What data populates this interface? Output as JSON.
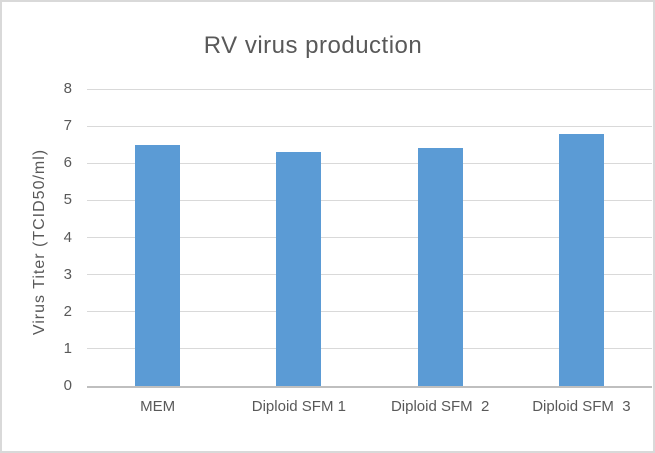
{
  "chart_data": {
    "type": "bar",
    "title": "RV virus production",
    "categories": [
      "MEM",
      "Diploid SFM 1",
      "Diploid SFM  2",
      "Diploid SFM  3"
    ],
    "values": [
      6.5,
      6.3,
      6.4,
      6.8
    ],
    "xlabel": "",
    "ylabel": "Virus Titer (TCID50/ml)",
    "ylim": [
      0,
      8
    ],
    "yticks": [
      0,
      1,
      2,
      3,
      4,
      5,
      6,
      7,
      8
    ],
    "grid": "horizontal",
    "legend": "none",
    "colors": {
      "bar": "#5b9bd5",
      "gridline": "#d9d9d9",
      "axis_line": "#bfbfbf",
      "text": "#595959",
      "background": "#ffffff",
      "border": "#d9d9d9"
    }
  }
}
